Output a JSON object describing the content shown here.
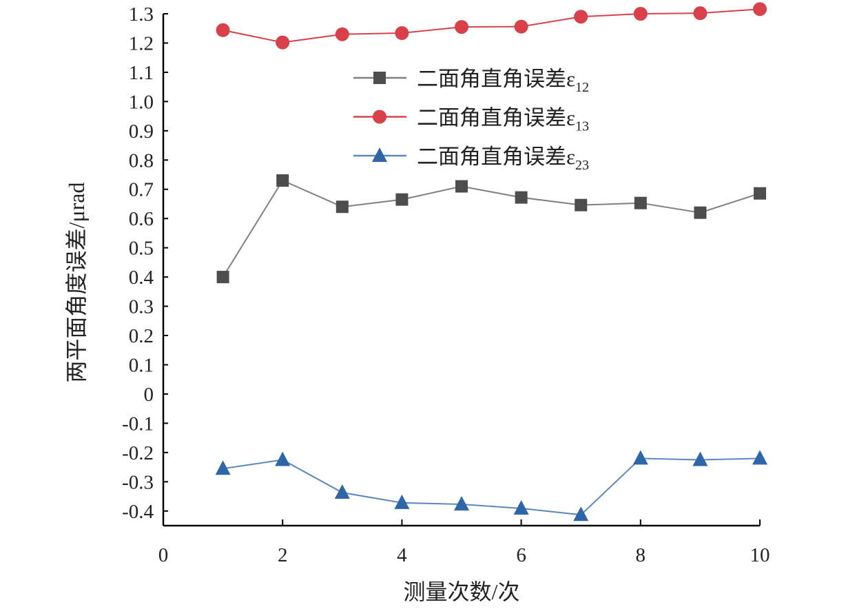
{
  "chart_data": {
    "type": "line",
    "title": "",
    "xlabel": "测量次数/次",
    "ylabel": "两平面角度误差/μrad",
    "xlim": [
      0,
      10
    ],
    "ylim": [
      -0.45,
      1.3
    ],
    "xticks": [
      0,
      2,
      4,
      6,
      8,
      10
    ],
    "xtick_labels": [
      "0",
      "2",
      "4",
      "6",
      "8",
      "10"
    ],
    "yticks": [
      -0.4,
      -0.3,
      -0.2,
      -0.1,
      0,
      0.1,
      0.2,
      0.3,
      0.4,
      0.5,
      0.6,
      0.7,
      0.8,
      0.9,
      1.0,
      1.1,
      1.2,
      1.3
    ],
    "ytick_labels": [
      "-0.4",
      "-0.3",
      "-0.2",
      "-0.1",
      "0",
      "0.1",
      "0.2",
      "0.3",
      "0.4",
      "0.5",
      "0.6",
      "0.7",
      "0.8",
      "0.9",
      "1.0",
      "1.1",
      "1.2",
      "1.3"
    ],
    "grid": false,
    "legend_position": "upper-center",
    "x": [
      1,
      2,
      3,
      4,
      5,
      6,
      7,
      8,
      9,
      10
    ],
    "series": [
      {
        "name": "二面角直角误差ε12",
        "label_main": "二面角直角误差ε",
        "label_sub": "12",
        "marker": "square",
        "color": "#4d4d4d",
        "line_color": "#7f7f7f",
        "values": [
          0.4,
          0.73,
          0.64,
          0.665,
          0.71,
          0.672,
          0.646,
          0.653,
          0.62,
          0.686
        ]
      },
      {
        "name": "二面角直角误差ε13",
        "label_main": "二面角直角误差ε",
        "label_sub": "13",
        "marker": "circle",
        "color": "#d9414a",
        "line_color": "#d9414a",
        "values": [
          1.244,
          1.202,
          1.23,
          1.234,
          1.255,
          1.256,
          1.29,
          1.3,
          1.302,
          1.316
        ]
      },
      {
        "name": "二面角直角误差ε23",
        "label_main": "二面角直角误差ε",
        "label_sub": "23",
        "marker": "triangle",
        "color": "#2e66a8",
        "line_color": "#5a87c0",
        "values": [
          -0.255,
          -0.225,
          -0.337,
          -0.372,
          -0.377,
          -0.391,
          -0.413,
          -0.22,
          -0.225,
          -0.22
        ]
      }
    ]
  }
}
